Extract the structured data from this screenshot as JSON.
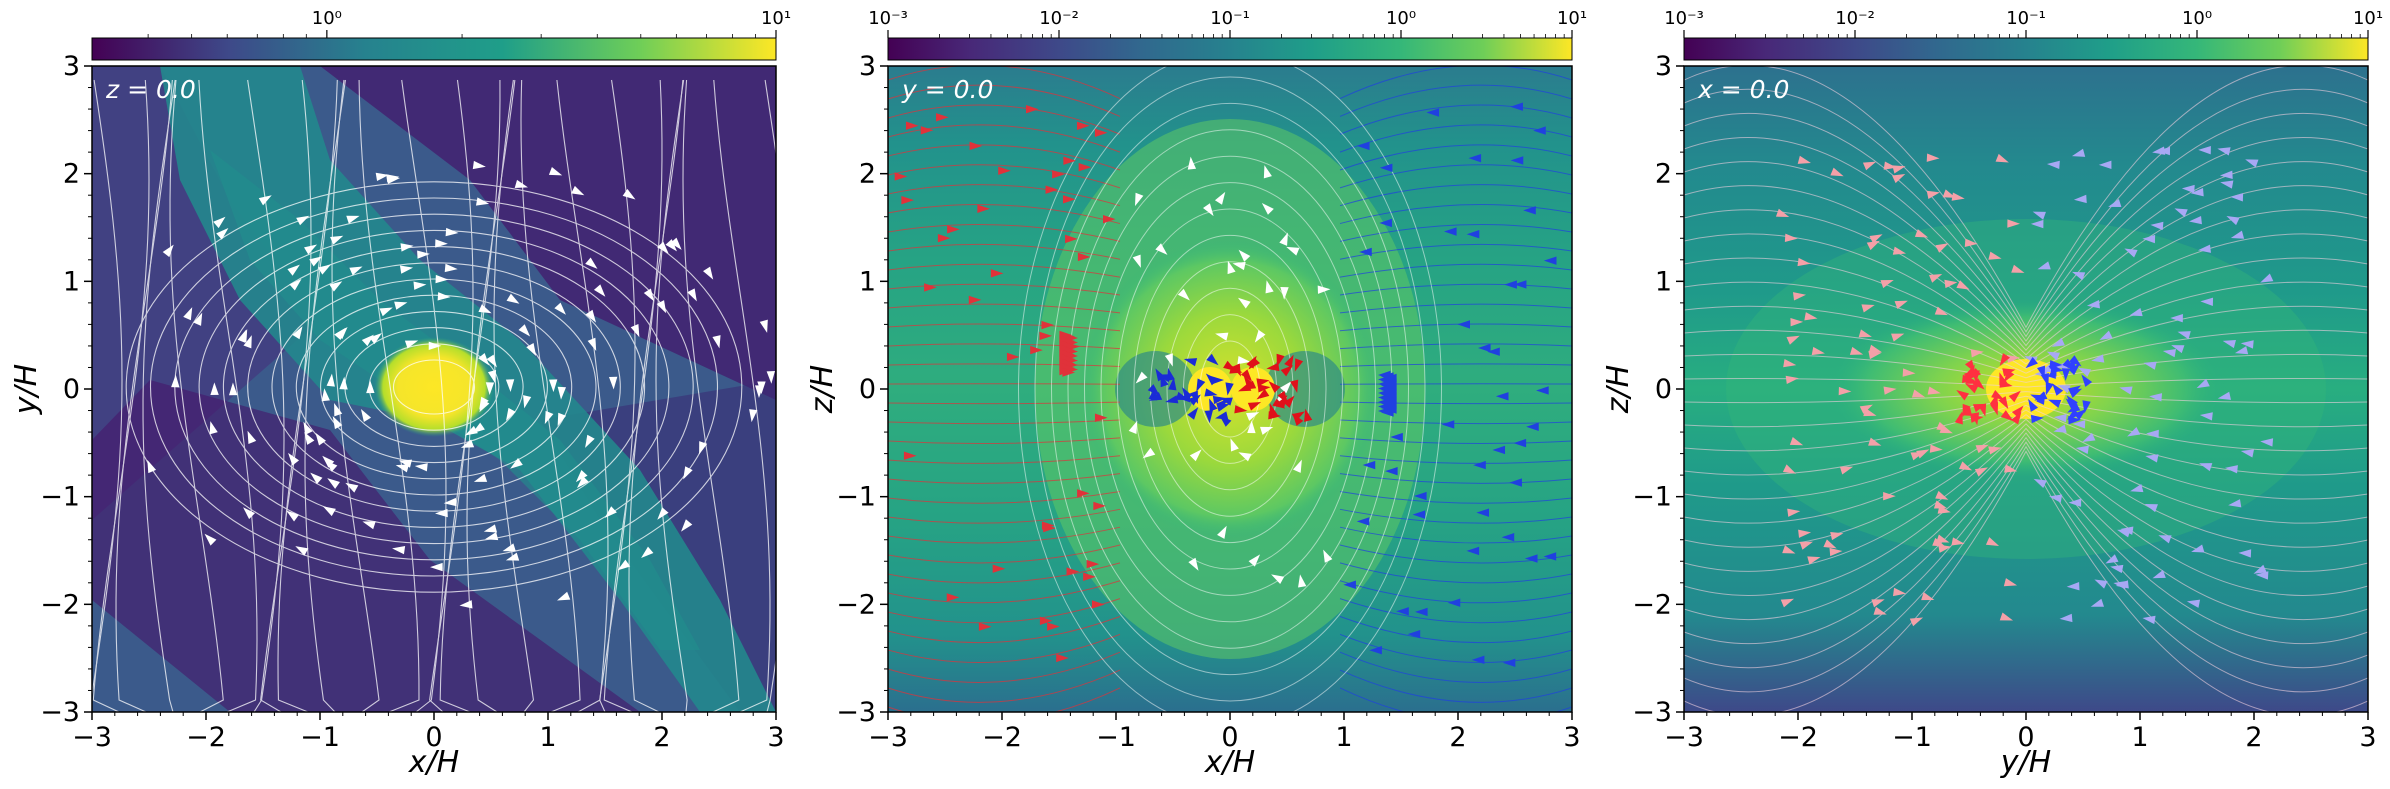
{
  "figure": {
    "panels_count": 3
  },
  "chart_data": [
    {
      "type": "heatmap",
      "slice_label": "z = 0.0",
      "xlabel": "x/H",
      "ylabel": "y/H",
      "xlim": [
        -3,
        3
      ],
      "ylim": [
        -3,
        3
      ],
      "xticks": [
        "−3",
        "−2",
        "−1",
        "0",
        "1",
        "2",
        "3"
      ],
      "yticks": [
        "−3",
        "−2",
        "−1",
        "0",
        "1",
        "2",
        "3"
      ],
      "colorbar": {
        "scale": "log",
        "range": [
          0.3,
          10
        ],
        "tick_labels": [
          "10⁰",
          "10¹"
        ],
        "tick_values": [
          1,
          10
        ],
        "colormap": "viridis"
      },
      "overlay": "streamlines (white)"
    },
    {
      "type": "heatmap",
      "slice_label": "y = 0.0",
      "xlabel": "x/H",
      "ylabel": "z/H",
      "xlim": [
        -3,
        3
      ],
      "ylim": [
        -3,
        3
      ],
      "xticks": [
        "−3",
        "−2",
        "−1",
        "0",
        "1",
        "2",
        "3"
      ],
      "yticks": [
        "−3",
        "−2",
        "−1",
        "0",
        "1",
        "2",
        "3"
      ],
      "colorbar": {
        "scale": "log",
        "range": [
          0.001,
          10
        ],
        "tick_labels": [
          "10⁻³",
          "10⁻²",
          "10⁻¹",
          "10⁰",
          "10¹"
        ],
        "tick_values": [
          0.001,
          0.01,
          0.1,
          1,
          10
        ],
        "colormap": "viridis"
      },
      "overlay": "streamlines (red left, blue right, white center)"
    },
    {
      "type": "heatmap",
      "slice_label": "x = 0.0",
      "xlabel": "y/H",
      "ylabel": "z/H",
      "xlim": [
        -3,
        3
      ],
      "ylim": [
        -3,
        3
      ],
      "xticks": [
        "−3",
        "−2",
        "−1",
        "0",
        "1",
        "2",
        "3"
      ],
      "yticks": [
        "−3",
        "−2",
        "−1",
        "0",
        "1",
        "2",
        "3"
      ],
      "colorbar": {
        "scale": "log",
        "range": [
          0.001,
          10
        ],
        "tick_labels": [
          "10⁻³",
          "10⁻²",
          "10⁻¹",
          "10⁰",
          "10¹"
        ],
        "tick_values": [
          0.001,
          0.01,
          0.1,
          1,
          10
        ],
        "colormap": "viridis"
      },
      "overlay": "streamlines (pink left, lavender right)"
    }
  ]
}
